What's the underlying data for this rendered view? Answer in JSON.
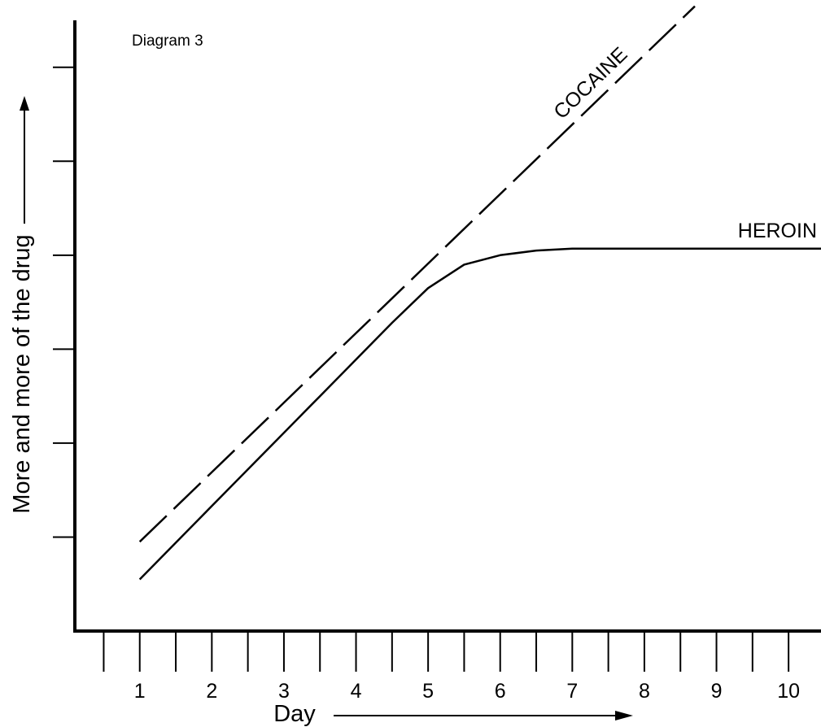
{
  "chart_data": {
    "type": "line",
    "title": "Diagram 3",
    "xlabel": "Day",
    "ylabel": "More and more of the drug",
    "x_tick_labels": [
      "1",
      "2",
      "3",
      "4",
      "5",
      "6",
      "7",
      "8",
      "9",
      "10"
    ],
    "x_range": [
      0.1,
      10.45
    ],
    "y_range": [
      0,
      6.5
    ],
    "y_ticks": [
      1,
      2,
      3,
      4,
      5,
      6
    ],
    "grid": false,
    "legend": "none",
    "series": [
      {
        "name": "COCAINE",
        "style": "dashed",
        "x": [
          1.0,
          8.7
        ],
        "y": [
          0.95,
          6.65
        ]
      },
      {
        "name": "HEROIN",
        "style": "solid",
        "x": [
          1.0,
          1.5,
          2.0,
          2.5,
          3.0,
          3.5,
          4.0,
          4.5,
          5.0,
          5.5,
          6.0,
          6.5,
          7.0,
          7.5,
          8.0,
          8.5,
          9.0,
          9.5,
          10.0,
          10.5
        ],
        "y": [
          0.55,
          0.94,
          1.33,
          1.72,
          2.11,
          2.5,
          2.89,
          3.28,
          3.65,
          3.9,
          4.0,
          4.05,
          4.07,
          4.07,
          4.07,
          4.07,
          4.07,
          4.07,
          4.07,
          4.07
        ]
      }
    ]
  }
}
